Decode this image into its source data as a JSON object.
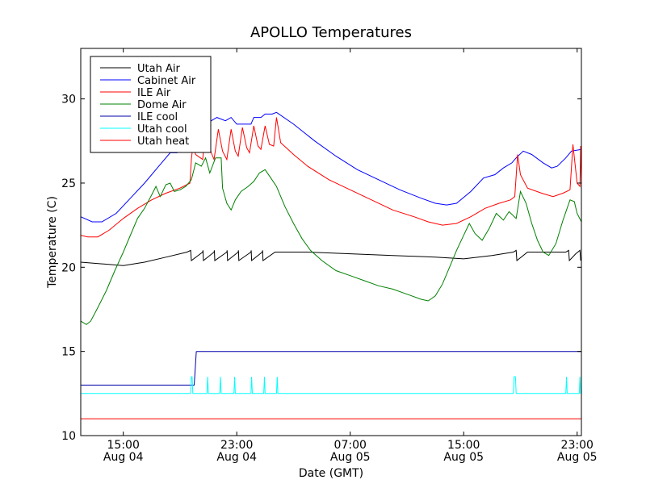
{
  "chart_data": {
    "type": "line",
    "title": "APOLLO Temperatures",
    "xlabel": "Date (GMT)",
    "ylabel": "Temperature (C)",
    "xlim": [
      11.0,
      46.3
    ],
    "ylim": [
      10,
      33
    ],
    "yticks": [
      10,
      15,
      20,
      25,
      30
    ],
    "xticks": [
      {
        "x": 14.0,
        "time": "15:00",
        "date": "Aug 04"
      },
      {
        "x": 22.0,
        "time": "23:00",
        "date": "Aug 04"
      },
      {
        "x": 30.0,
        "time": "07:00",
        "date": "Aug 05"
      },
      {
        "x": 38.0,
        "time": "15:00",
        "date": "Aug 05"
      },
      {
        "x": 46.0,
        "time": "23:00",
        "date": "Aug 05"
      }
    ],
    "grid": false,
    "legend_position": "top-left",
    "series": [
      {
        "name": "Utah Air",
        "color": "#000000",
        "points": [
          [
            11.0,
            20.3
          ],
          [
            12.5,
            20.2
          ],
          [
            14.0,
            20.1
          ],
          [
            15.5,
            20.3
          ],
          [
            17.0,
            20.6
          ],
          [
            18.5,
            20.9
          ],
          [
            18.75,
            21.0
          ],
          [
            18.8,
            20.4
          ],
          [
            19.6,
            20.9
          ],
          [
            19.62,
            21.0
          ],
          [
            19.65,
            20.4
          ],
          [
            20.4,
            20.9
          ],
          [
            20.42,
            21.0
          ],
          [
            20.45,
            20.4
          ],
          [
            21.3,
            20.9
          ],
          [
            21.32,
            21.0
          ],
          [
            21.35,
            20.4
          ],
          [
            22.1,
            20.9
          ],
          [
            22.12,
            21.0
          ],
          [
            22.15,
            20.4
          ],
          [
            23.0,
            20.9
          ],
          [
            23.02,
            21.0
          ],
          [
            23.05,
            20.4
          ],
          [
            23.8,
            20.9
          ],
          [
            23.82,
            21.0
          ],
          [
            23.85,
            20.4
          ],
          [
            24.7,
            20.9
          ],
          [
            25.5,
            20.9
          ],
          [
            27.0,
            20.9
          ],
          [
            30.0,
            20.8
          ],
          [
            33.0,
            20.7
          ],
          [
            36.0,
            20.6
          ],
          [
            38.0,
            20.5
          ],
          [
            40.0,
            20.7
          ],
          [
            41.5,
            20.9
          ],
          [
            41.7,
            21.0
          ],
          [
            41.75,
            20.4
          ],
          [
            42.5,
            20.9
          ],
          [
            44.0,
            20.9
          ],
          [
            45.2,
            20.9
          ],
          [
            45.4,
            21.0
          ],
          [
            45.45,
            20.4
          ],
          [
            45.9,
            20.8
          ],
          [
            46.2,
            21.0
          ],
          [
            46.25,
            20.4
          ]
        ]
      },
      {
        "name": "Cabinet Air",
        "color": "#0000ff",
        "points": [
          [
            11.0,
            23.0
          ],
          [
            11.8,
            22.7
          ],
          [
            12.5,
            22.7
          ],
          [
            13.5,
            23.2
          ],
          [
            14.5,
            24.1
          ],
          [
            15.5,
            25.0
          ],
          [
            16.5,
            26.0
          ],
          [
            17.3,
            26.8
          ],
          [
            17.8,
            26.8
          ],
          [
            18.3,
            27.3
          ],
          [
            18.8,
            27.8
          ],
          [
            19.5,
            28.3
          ],
          [
            20.2,
            28.7
          ],
          [
            20.6,
            28.9
          ],
          [
            21.2,
            28.7
          ],
          [
            21.6,
            28.9
          ],
          [
            22.0,
            28.5
          ],
          [
            22.5,
            28.5
          ],
          [
            23.0,
            28.5
          ],
          [
            23.2,
            28.9
          ],
          [
            23.7,
            28.9
          ],
          [
            24.0,
            29.1
          ],
          [
            24.5,
            29.1
          ],
          [
            24.8,
            29.2
          ],
          [
            26.0,
            28.5
          ],
          [
            27.5,
            27.5
          ],
          [
            29.0,
            26.6
          ],
          [
            30.5,
            25.8
          ],
          [
            32.0,
            25.2
          ],
          [
            33.5,
            24.6
          ],
          [
            35.0,
            24.1
          ],
          [
            36.0,
            23.8
          ],
          [
            36.8,
            23.7
          ],
          [
            37.5,
            23.8
          ],
          [
            38.5,
            24.5
          ],
          [
            39.4,
            25.3
          ],
          [
            40.2,
            25.5
          ],
          [
            40.8,
            25.9
          ],
          [
            41.4,
            26.2
          ],
          [
            41.7,
            26.5
          ],
          [
            42.2,
            26.9
          ],
          [
            42.8,
            26.7
          ],
          [
            43.6,
            26.2
          ],
          [
            44.2,
            25.9
          ],
          [
            44.6,
            26.0
          ],
          [
            45.2,
            26.5
          ],
          [
            45.6,
            26.9
          ],
          [
            46.3,
            27.0
          ]
        ]
      },
      {
        "name": "ILE Air",
        "color": "#ff0000",
        "points": [
          [
            11.0,
            21.9
          ],
          [
            11.5,
            21.8
          ],
          [
            12.2,
            21.8
          ],
          [
            13.0,
            22.2
          ],
          [
            14.0,
            22.9
          ],
          [
            15.0,
            23.5
          ],
          [
            16.0,
            24.0
          ],
          [
            17.0,
            24.4
          ],
          [
            18.0,
            24.7
          ],
          [
            18.7,
            25.0
          ],
          [
            18.8,
            26.4
          ],
          [
            18.9,
            27.2
          ],
          [
            19.1,
            26.7
          ],
          [
            19.6,
            26.4
          ],
          [
            19.8,
            28.2
          ],
          [
            20.2,
            26.8
          ],
          [
            20.4,
            26.4
          ],
          [
            20.7,
            28.2
          ],
          [
            21.0,
            26.9
          ],
          [
            21.3,
            26.4
          ],
          [
            21.6,
            28.2
          ],
          [
            21.9,
            26.9
          ],
          [
            22.1,
            26.6
          ],
          [
            22.4,
            28.3
          ],
          [
            22.7,
            27.1
          ],
          [
            22.9,
            26.8
          ],
          [
            23.2,
            28.4
          ],
          [
            23.5,
            27.2
          ],
          [
            23.7,
            27.0
          ],
          [
            24.0,
            28.4
          ],
          [
            24.3,
            27.3
          ],
          [
            24.6,
            27.2
          ],
          [
            24.8,
            28.9
          ],
          [
            25.1,
            27.4
          ],
          [
            26.0,
            26.7
          ],
          [
            27.0,
            26.0
          ],
          [
            28.5,
            25.2
          ],
          [
            30.0,
            24.6
          ],
          [
            31.5,
            24.0
          ],
          [
            33.0,
            23.4
          ],
          [
            34.5,
            23.0
          ],
          [
            35.5,
            22.7
          ],
          [
            36.5,
            22.5
          ],
          [
            37.5,
            22.6
          ],
          [
            38.5,
            23.0
          ],
          [
            39.5,
            23.5
          ],
          [
            40.5,
            23.8
          ],
          [
            41.3,
            24.0
          ],
          [
            41.6,
            24.2
          ],
          [
            41.8,
            26.7
          ],
          [
            42.0,
            25.5
          ],
          [
            42.5,
            24.7
          ],
          [
            43.5,
            24.4
          ],
          [
            44.3,
            24.2
          ],
          [
            45.0,
            24.4
          ],
          [
            45.5,
            24.6
          ],
          [
            45.7,
            27.3
          ],
          [
            46.0,
            25.0
          ],
          [
            46.2,
            24.8
          ],
          [
            46.25,
            27.2
          ],
          [
            46.3,
            25.0
          ]
        ]
      },
      {
        "name": "Dome Air",
        "color": "#008000",
        "points": [
          [
            11.0,
            16.8
          ],
          [
            11.4,
            16.6
          ],
          [
            11.7,
            16.8
          ],
          [
            12.2,
            17.6
          ],
          [
            12.8,
            18.6
          ],
          [
            13.4,
            19.8
          ],
          [
            14.0,
            20.9
          ],
          [
            14.6,
            22.1
          ],
          [
            15.0,
            22.9
          ],
          [
            15.5,
            23.5
          ],
          [
            16.0,
            24.3
          ],
          [
            16.3,
            24.8
          ],
          [
            16.6,
            24.2
          ],
          [
            17.0,
            24.9
          ],
          [
            17.3,
            25.0
          ],
          [
            17.6,
            24.5
          ],
          [
            18.0,
            24.6
          ],
          [
            18.4,
            24.8
          ],
          [
            18.8,
            25.2
          ],
          [
            19.1,
            26.2
          ],
          [
            19.5,
            26.0
          ],
          [
            19.8,
            26.5
          ],
          [
            20.1,
            25.6
          ],
          [
            20.5,
            26.5
          ],
          [
            20.9,
            26.5
          ],
          [
            21.0,
            24.7
          ],
          [
            21.3,
            23.8
          ],
          [
            21.6,
            23.4
          ],
          [
            21.9,
            24.0
          ],
          [
            22.3,
            24.5
          ],
          [
            22.8,
            24.8
          ],
          [
            23.2,
            25.1
          ],
          [
            23.6,
            25.6
          ],
          [
            24.0,
            25.8
          ],
          [
            24.4,
            25.3
          ],
          [
            24.8,
            24.8
          ],
          [
            25.4,
            23.6
          ],
          [
            26.0,
            22.6
          ],
          [
            26.6,
            21.7
          ],
          [
            27.2,
            21.0
          ],
          [
            28.0,
            20.4
          ],
          [
            29.0,
            19.8
          ],
          [
            30.0,
            19.5
          ],
          [
            31.0,
            19.2
          ],
          [
            32.0,
            18.9
          ],
          [
            33.0,
            18.7
          ],
          [
            34.0,
            18.4
          ],
          [
            35.0,
            18.1
          ],
          [
            35.5,
            18.0
          ],
          [
            36.0,
            18.3
          ],
          [
            36.5,
            19.0
          ],
          [
            37.0,
            20.0
          ],
          [
            37.5,
            21.0
          ],
          [
            38.0,
            21.9
          ],
          [
            38.4,
            22.6
          ],
          [
            38.8,
            22.0
          ],
          [
            39.3,
            21.6
          ],
          [
            39.8,
            22.3
          ],
          [
            40.3,
            23.2
          ],
          [
            40.8,
            22.8
          ],
          [
            41.2,
            23.3
          ],
          [
            41.7,
            22.9
          ],
          [
            42.0,
            24.5
          ],
          [
            42.4,
            23.8
          ],
          [
            42.8,
            22.6
          ],
          [
            43.2,
            21.6
          ],
          [
            43.6,
            20.9
          ],
          [
            44.0,
            20.7
          ],
          [
            44.5,
            21.4
          ],
          [
            45.0,
            22.8
          ],
          [
            45.5,
            24.0
          ],
          [
            45.8,
            23.9
          ],
          [
            46.0,
            23.2
          ],
          [
            46.3,
            22.7
          ]
        ]
      },
      {
        "name": "ILE cool",
        "color": "#0000aa",
        "points": [
          [
            11.0,
            13.0
          ],
          [
            18.7,
            13.0
          ],
          [
            19.0,
            13.0
          ],
          [
            19.15,
            14.99
          ],
          [
            19.2,
            15.0
          ],
          [
            46.3,
            15.0
          ]
        ]
      },
      {
        "name": "Utah cool",
        "color": "#00ffff",
        "points": [
          [
            11.0,
            12.5
          ],
          [
            18.75,
            12.5
          ],
          [
            18.8,
            13.5
          ],
          [
            18.85,
            13.5
          ],
          [
            18.9,
            12.5
          ],
          [
            19.9,
            12.5
          ],
          [
            19.95,
            13.5
          ],
          [
            20.0,
            12.5
          ],
          [
            20.8,
            12.5
          ],
          [
            20.85,
            13.5
          ],
          [
            20.9,
            12.5
          ],
          [
            21.8,
            12.5
          ],
          [
            21.85,
            13.5
          ],
          [
            21.9,
            12.5
          ],
          [
            23.0,
            12.5
          ],
          [
            23.05,
            13.5
          ],
          [
            23.1,
            12.5
          ],
          [
            23.9,
            12.5
          ],
          [
            23.95,
            13.5
          ],
          [
            24.0,
            12.5
          ],
          [
            24.8,
            12.5
          ],
          [
            24.85,
            13.5
          ],
          [
            24.9,
            12.5
          ],
          [
            41.5,
            12.5
          ],
          [
            41.55,
            13.5
          ],
          [
            41.65,
            13.5
          ],
          [
            41.7,
            12.5
          ],
          [
            45.2,
            12.5
          ],
          [
            45.25,
            13.5
          ],
          [
            45.3,
            12.5
          ],
          [
            46.15,
            12.5
          ],
          [
            46.2,
            13.5
          ],
          [
            46.25,
            12.5
          ],
          [
            46.3,
            12.5
          ]
        ]
      },
      {
        "name": "Utah heat",
        "color": "#ff0000",
        "points": [
          [
            11.0,
            11.0
          ],
          [
            46.3,
            11.0
          ]
        ]
      }
    ]
  }
}
